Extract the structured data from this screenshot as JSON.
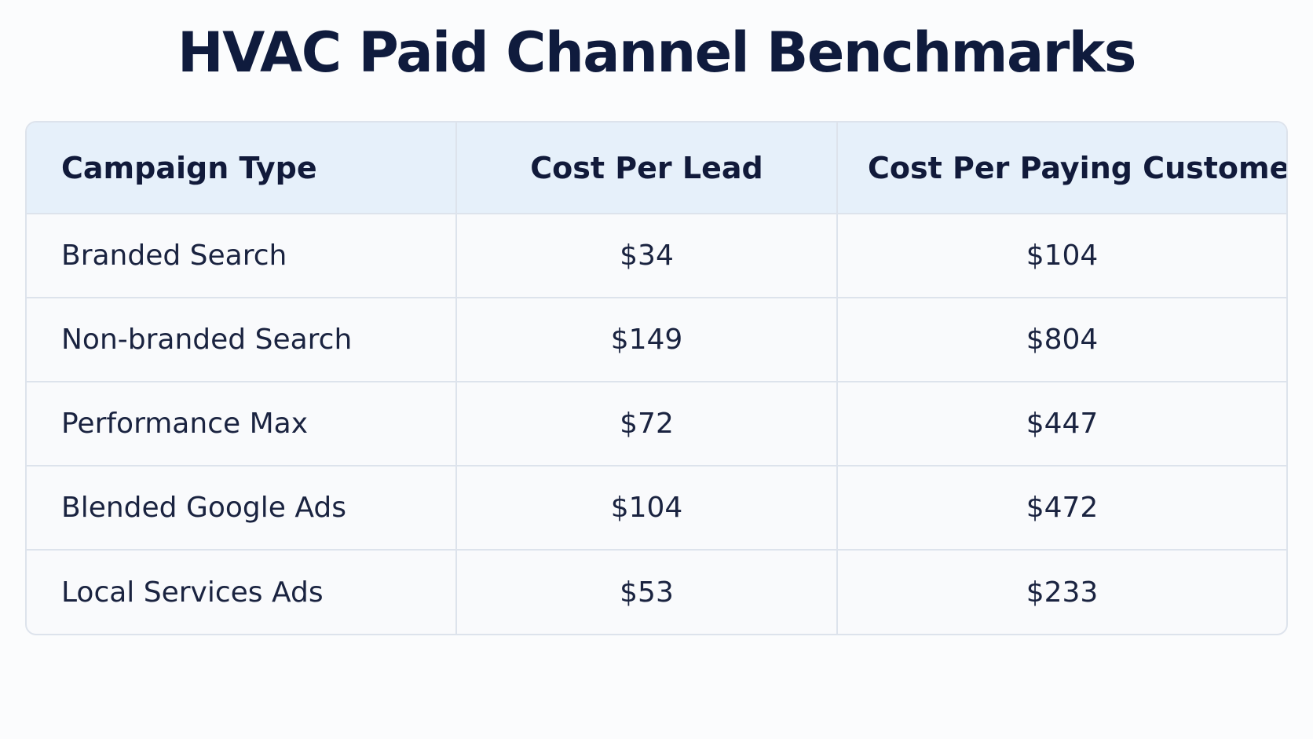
{
  "chart_data": {
    "type": "table",
    "title": "HVAC Paid Channel Benchmarks",
    "columns": [
      "Campaign Type",
      "Cost Per Lead",
      "Cost Per Paying Customer"
    ],
    "rows": [
      [
        "Branded Search",
        "$34",
        "$104"
      ],
      [
        "Non-branded Search",
        "$149",
        "$804"
      ],
      [
        "Performance Max",
        "$72",
        "$447"
      ],
      [
        "Blended Google Ads",
        "$104",
        "$472"
      ],
      [
        "Local Services Ads",
        "$53",
        "$233"
      ]
    ]
  },
  "colors": {
    "header_background": "#e6f0fa",
    "text": "#111a3a",
    "border": "#dde3ec",
    "background": "#fbfcfd"
  }
}
